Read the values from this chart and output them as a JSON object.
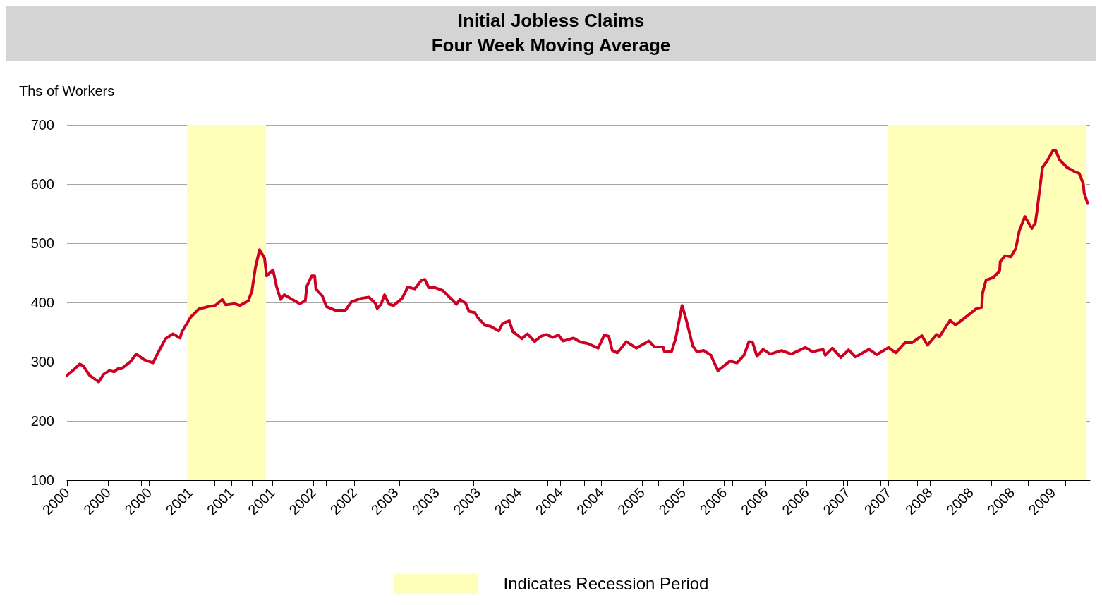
{
  "chart_data": {
    "type": "line",
    "title": "Initial Jobless Claims",
    "subtitle": "Four Week Moving Average",
    "ylabel": "Ths of Workers",
    "ylim": [
      100,
      700
    ],
    "yticks": [
      100,
      200,
      300,
      400,
      500,
      600,
      700
    ],
    "xlim": [
      "2000-01-01",
      "2009-07-18"
    ],
    "xticks": [
      {
        "value": "2000-01-01",
        "label": "2000"
      },
      {
        "value": "2000-05-06",
        "label": null
      },
      {
        "value": "2000-05-20",
        "label": "2000"
      },
      {
        "value": "2000-09-09",
        "label": null
      },
      {
        "value": "2000-10-07",
        "label": "2000"
      },
      {
        "value": "2001-01-13",
        "label": null
      },
      {
        "value": "2001-02-24",
        "label": "2001"
      },
      {
        "value": "2001-05-19",
        "label": null
      },
      {
        "value": "2001-07-14",
        "label": "2001"
      },
      {
        "value": "2001-09-22",
        "label": null
      },
      {
        "value": "2001-12-01",
        "label": "2001"
      },
      {
        "value": "2002-01-26",
        "label": null
      },
      {
        "value": "2002-04-20",
        "label": "2002"
      },
      {
        "value": "2002-06-01",
        "label": null
      },
      {
        "value": "2002-09-07",
        "label": "2002"
      },
      {
        "value": "2002-10-05",
        "label": null
      },
      {
        "value": "2003-01-25",
        "label": "2003"
      },
      {
        "value": "2003-02-08",
        "label": null
      },
      {
        "value": "2003-06-14",
        "label": "2003"
      },
      {
        "value": "2003-10-18",
        "label": null
      },
      {
        "value": "2003-11-01",
        "label": "2003"
      },
      {
        "value": "2004-02-21",
        "label": null
      },
      {
        "value": "2004-03-20",
        "label": "2004"
      },
      {
        "value": "2004-06-26",
        "label": null
      },
      {
        "value": "2004-08-07",
        "label": "2004"
      },
      {
        "value": "2004-10-30",
        "label": null
      },
      {
        "value": "2004-12-25",
        "label": "2004"
      },
      {
        "value": "2005-03-05",
        "label": null
      },
      {
        "value": "2005-05-14",
        "label": "2005"
      },
      {
        "value": "2005-07-09",
        "label": null
      },
      {
        "value": "2005-10-01",
        "label": "2005"
      },
      {
        "value": "2005-11-12",
        "label": null
      },
      {
        "value": "2006-02-18",
        "label": "2006"
      },
      {
        "value": "2006-03-18",
        "label": null
      },
      {
        "value": "2006-07-08",
        "label": "2006"
      },
      {
        "value": "2006-07-22",
        "label": null
      },
      {
        "value": "2006-11-25",
        "label": "2006"
      },
      {
        "value": "2007-03-31",
        "label": null
      },
      {
        "value": "2007-04-14",
        "label": "2007"
      },
      {
        "value": "2007-08-04",
        "label": null
      },
      {
        "value": "2007-09-01",
        "label": "2007"
      },
      {
        "value": "2007-12-08",
        "label": null
      },
      {
        "value": "2008-01-19",
        "label": "2008"
      },
      {
        "value": "2008-04-12",
        "label": null
      },
      {
        "value": "2008-06-07",
        "label": "2008"
      },
      {
        "value": "2008-08-16",
        "label": null
      },
      {
        "value": "2008-10-25",
        "label": "2008"
      },
      {
        "value": "2008-12-20",
        "label": null
      },
      {
        "value": "2009-03-14",
        "label": "2009"
      },
      {
        "value": "2009-04-25",
        "label": null
      }
    ],
    "grid": "y",
    "marker": "none",
    "legend": "bottom",
    "bands": [
      {
        "axis": "x",
        "from": "2001-02-13",
        "to": "2001-11-09",
        "label": "Indicates Recession Period",
        "color": "#ffffb9"
      },
      {
        "axis": "x",
        "from": "2007-08-30",
        "to": "2009-07-05",
        "color": "#ffffb9"
      }
    ],
    "series": [
      {
        "color": "#cc0022",
        "x": [
          "2000-01-01",
          "2000-01-25",
          "2000-02-13",
          "2000-02-25",
          "2000-03-18",
          "2000-04-18",
          "2000-05-05",
          "2000-05-24",
          "2000-06-10",
          "2000-06-22",
          "2000-07-04",
          "2000-08-04",
          "2000-08-24",
          "2000-09-21",
          "2000-10-20",
          "2000-11-08",
          "2000-12-02",
          "2000-12-27",
          "2001-01-20",
          "2001-01-27",
          "2001-02-25",
          "2001-03-25",
          "2001-04-26",
          "2001-05-20",
          "2001-06-13",
          "2001-06-25",
          "2001-07-24",
          "2001-08-12",
          "2001-09-10",
          "2001-09-22",
          "2001-10-04",
          "2001-10-18",
          "2001-11-04",
          "2001-11-11",
          "2001-12-03",
          "2001-12-15",
          "2001-12-29",
          "2002-01-10",
          "2002-03-04",
          "2002-03-23",
          "2002-03-28",
          "2002-04-14",
          "2002-04-24",
          "2002-04-28",
          "2002-05-20",
          "2002-06-03",
          "2002-07-02",
          "2002-08-07",
          "2002-08-27",
          "2002-09-29",
          "2002-10-26",
          "2002-11-16",
          "2002-11-23",
          "2002-12-06",
          "2002-12-18",
          "2003-01-03",
          "2003-01-18",
          "2003-02-16",
          "2003-03-07",
          "2003-03-31",
          "2003-04-22",
          "2003-05-04",
          "2003-05-18",
          "2003-06-09",
          "2003-07-05",
          "2003-07-27",
          "2003-08-20",
          "2003-09-01",
          "2003-09-20",
          "2003-10-02",
          "2003-10-21",
          "2003-10-31",
          "2003-11-26",
          "2003-12-13",
          "2004-01-11",
          "2004-01-25",
          "2004-02-16",
          "2004-02-28",
          "2004-03-30",
          "2004-04-18",
          "2004-05-12",
          "2004-06-03",
          "2004-06-22",
          "2004-07-12",
          "2004-08-02",
          "2004-08-17",
          "2004-09-22",
          "2004-10-16",
          "2004-11-09",
          "2004-12-15",
          "2005-01-05",
          "2005-01-20",
          "2005-02-01",
          "2005-02-18",
          "2005-03-21",
          "2005-04-24",
          "2005-06-06",
          "2005-06-25",
          "2005-07-24",
          "2005-07-29",
          "2005-08-22",
          "2005-09-05",
          "2005-09-27",
          "2005-10-11",
          "2005-11-02",
          "2005-11-16",
          "2005-12-10",
          "2006-01-03",
          "2006-01-27",
          "2006-03-09",
          "2006-04-02",
          "2006-04-26",
          "2006-05-13",
          "2006-05-25",
          "2006-06-09",
          "2006-06-30",
          "2006-07-24",
          "2006-09-01",
          "2006-10-04",
          "2006-11-21",
          "2006-12-15",
          "2007-01-20",
          "2007-01-28",
          "2007-02-21",
          "2007-03-22",
          "2007-04-17",
          "2007-05-11",
          "2007-06-26",
          "2007-07-22",
          "2007-09-01",
          "2007-09-25",
          "2007-10-26",
          "2007-11-19",
          "2007-12-23",
          "2008-01-11",
          "2008-02-11",
          "2008-02-21",
          "2008-03-28",
          "2008-04-16",
          "2008-05-17",
          "2008-06-27",
          "2008-07-14",
          "2008-07-17",
          "2008-07-29",
          "2008-08-22",
          "2008-09-13",
          "2008-09-15",
          "2008-10-02",
          "2008-10-21",
          "2008-11-07",
          "2008-11-19",
          "2008-12-08",
          "2009-01-01",
          "2009-01-13",
          "2009-01-18",
          "2009-01-25",
          "2009-02-06",
          "2009-02-23",
          "2009-03-14",
          "2009-03-24",
          "2009-04-05",
          "2009-05-01",
          "2009-05-30",
          "2009-06-11",
          "2009-06-25",
          "2009-06-28",
          "2009-07-10"
        ],
        "values": [
          277,
          287,
          296,
          293,
          277,
          266,
          279,
          285,
          283,
          288,
          288,
          300,
          313,
          303,
          298,
          317,
          339,
          347,
          340,
          351,
          375,
          389,
          393,
          395,
          405,
          396,
          398,
          395,
          403,
          419,
          459,
          489,
          475,
          445,
          455,
          427,
          405,
          413,
          398,
          403,
          427,
          445,
          445,
          423,
          411,
          393,
          387,
          387,
          401,
          407,
          409,
          399,
          390,
          397,
          413,
          397,
          395,
          407,
          426,
          423,
          437,
          439,
          425,
          425,
          420,
          409,
          397,
          405,
          399,
          385,
          383,
          375,
          361,
          360,
          352,
          365,
          369,
          351,
          339,
          347,
          334,
          343,
          346,
          341,
          345,
          335,
          340,
          333,
          331,
          323,
          345,
          343,
          319,
          315,
          334,
          323,
          335,
          325,
          325,
          317,
          317,
          339,
          395,
          371,
          327,
          317,
          319,
          311,
          285,
          301,
          298,
          311,
          334,
          333,
          309,
          321,
          313,
          319,
          313,
          324,
          317,
          321,
          311,
          323,
          307,
          320,
          308,
          321,
          312,
          324,
          315,
          332,
          332,
          344,
          328,
          346,
          342,
          370,
          362,
          374,
          390,
          392,
          416,
          438,
          442,
          453,
          469,
          479,
          477,
          491,
          521,
          545,
          525,
          535,
          553,
          581,
          628,
          640,
          657,
          656,
          641,
          628,
          620,
          618,
          601,
          585,
          567
        ]
      }
    ]
  }
}
